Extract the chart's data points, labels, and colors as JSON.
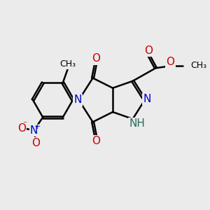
{
  "bg_color": "#ebebeb",
  "bond_color": "#000000",
  "bond_width": 1.8,
  "atom_colors": {
    "C": "#000000",
    "N": "#0000cc",
    "O": "#cc0000",
    "NH": "#2a6a5a"
  },
  "font_size": 11,
  "font_size_small": 9
}
